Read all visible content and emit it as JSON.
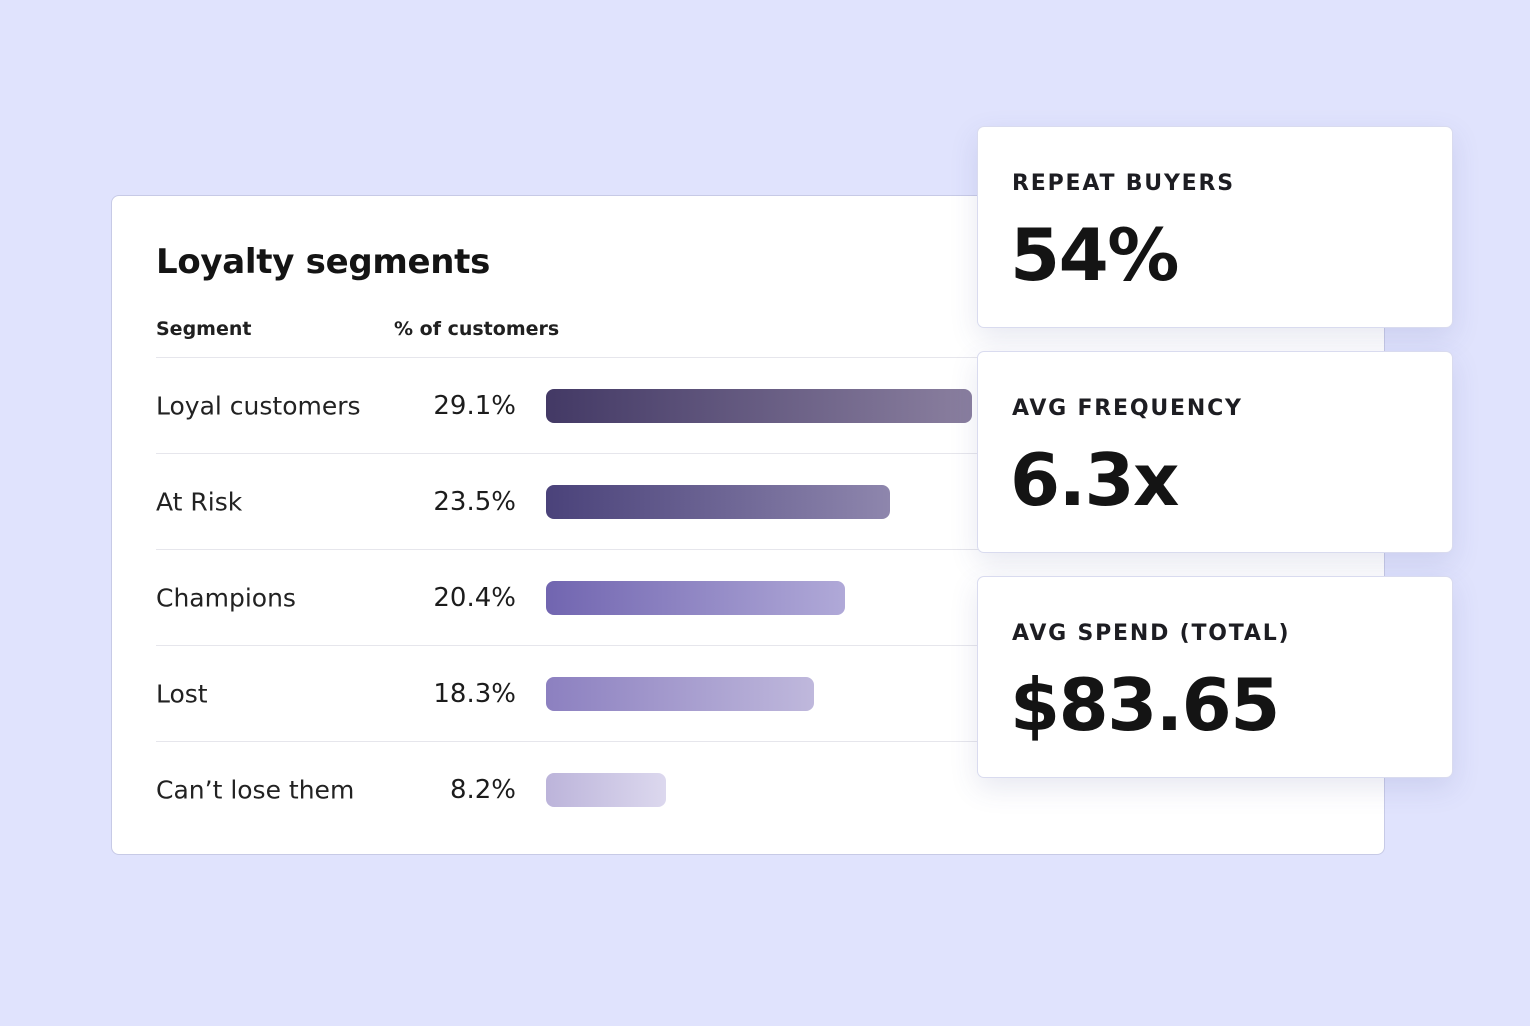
{
  "segments_card": {
    "title": "Loyalty segments",
    "columns": {
      "segment": "Segment",
      "percent": "% of customers"
    },
    "rows": [
      {
        "label": "Loyal customers",
        "value_text": "29.1%",
        "value": 29.1,
        "gradient": [
          "#433965",
          "#8a7f9f"
        ]
      },
      {
        "label": "At Risk",
        "value_text": "23.5%",
        "value": 23.5,
        "gradient": [
          "#4a427a",
          "#8e86ad"
        ]
      },
      {
        "label": "Champions",
        "value_text": "20.4%",
        "value": 20.4,
        "gradient": [
          "#7165b0",
          "#b0a9d8"
        ]
      },
      {
        "label": "Lost",
        "value_text": "18.3%",
        "value": 18.3,
        "gradient": [
          "#8c80c0",
          "#bfb8dc"
        ]
      },
      {
        "label": "Can’t lose them",
        "value_text": "8.2%",
        "value": 8.2,
        "gradient": [
          "#bcb4da",
          "#dcd8ee"
        ]
      }
    ]
  },
  "stat_cards": [
    {
      "label": "REPEAT BUYERS",
      "value": "54%"
    },
    {
      "label": "AVG FREQUENCY",
      "value": "6.3x"
    },
    {
      "label": "AVG SPEND (TOTAL)",
      "value": "$83.65"
    }
  ],
  "colors": {
    "background": "#e0e3fd",
    "card": "#ffffff",
    "text": "#141414"
  }
}
